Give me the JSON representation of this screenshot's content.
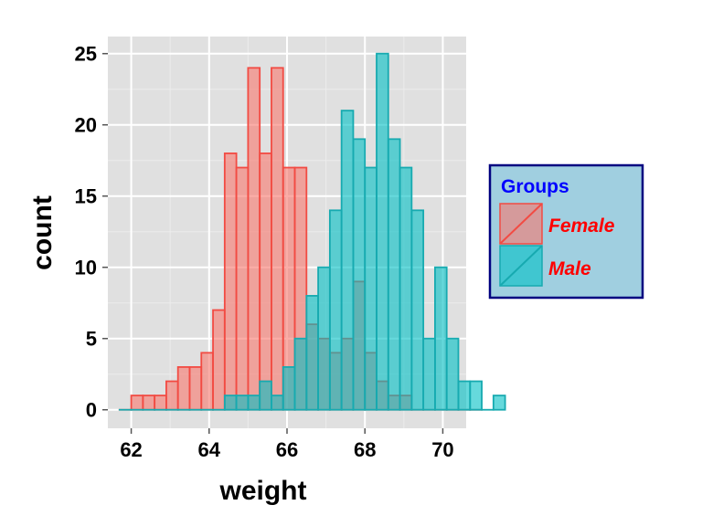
{
  "chart_data": {
    "type": "bar",
    "subtype": "histogram",
    "xlabel": "weight",
    "ylabel": "count",
    "xlim": [
      61.4,
      70.6
    ],
    "ylim": [
      -1.3,
      26.2
    ],
    "x_ticks": [
      62,
      64,
      66,
      68,
      70
    ],
    "y_ticks": [
      0,
      5,
      10,
      15,
      20,
      25
    ],
    "bin_width": 0.3,
    "bin_start": 61.7,
    "grid": true,
    "legend": {
      "title": "Groups",
      "position": "right"
    },
    "series": [
      {
        "name": "Female",
        "fill": "#f8766d",
        "outline": "#f24b43",
        "counts": [
          0,
          1,
          1,
          1,
          2,
          3,
          3,
          4,
          7,
          18,
          17,
          24,
          18,
          24,
          17,
          17,
          6,
          5,
          4,
          5,
          9,
          4,
          2,
          1,
          1,
          0,
          0,
          0,
          0,
          0,
          0
        ]
      },
      {
        "name": "Male",
        "fill": "#00bfc4",
        "outline": "#17aab0",
        "counts": [
          0,
          0,
          0,
          0,
          0,
          0,
          0,
          0,
          0,
          1,
          1,
          1,
          2,
          1,
          3,
          5,
          8,
          10,
          14,
          21,
          19,
          17,
          25,
          19,
          17,
          14,
          5,
          10,
          5,
          2,
          2,
          0,
          1
        ]
      }
    ],
    "colors": {
      "panel_bg": "#e0e0e0",
      "grid_major": "#ffffff",
      "grid_minor": "#ececec",
      "legend_bg": "#a0cfe0",
      "legend_border": "#000080",
      "legend_title": "#0000ff",
      "legend_label": "#ff0000"
    }
  }
}
